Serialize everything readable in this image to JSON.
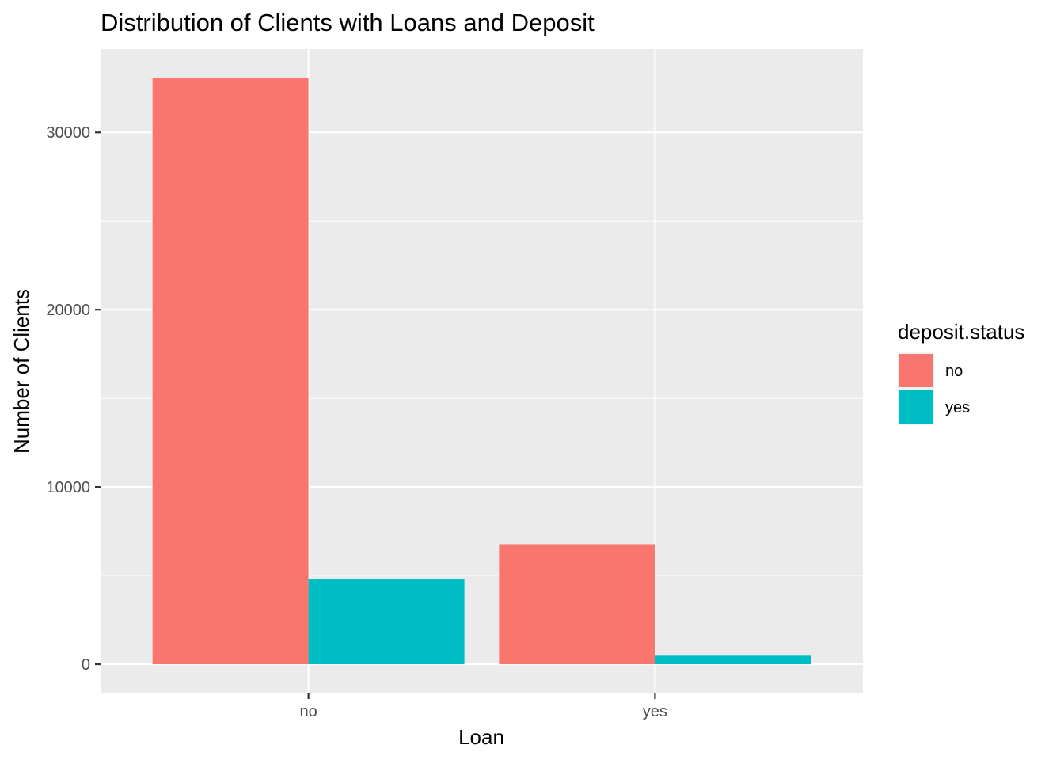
{
  "chart_data": {
    "type": "bar",
    "title": "Distribution of Clients with Loans and Deposit",
    "xlabel": "Loan",
    "ylabel": "Number of Clients",
    "categories": [
      "no",
      "yes"
    ],
    "series": [
      {
        "name": "no",
        "values": [
          33050,
          6770
        ],
        "color": "#F8766D"
      },
      {
        "name": "yes",
        "values": [
          4810,
          480
        ],
        "color": "#00BFC4"
      }
    ],
    "ylim": [
      -1650,
      34700
    ],
    "yticks": [
      0,
      10000,
      20000,
      30000
    ],
    "ytick_labels": [
      "0",
      "10000",
      "20000",
      "30000"
    ],
    "legend": {
      "title": "deposit.status",
      "position": "right"
    },
    "grid": true
  }
}
